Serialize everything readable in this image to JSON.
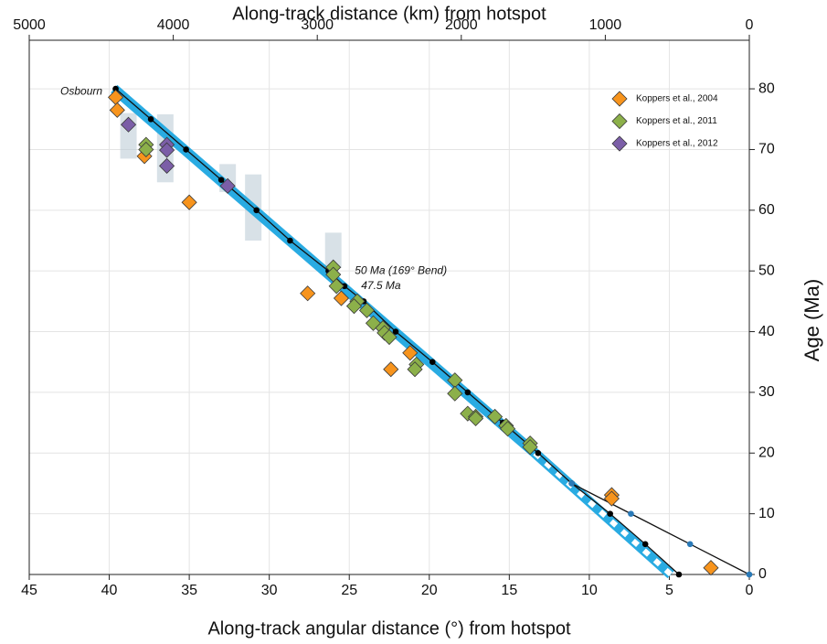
{
  "chart_data": {
    "type": "scatter",
    "xlabel": "Along-track angular distance (°) from hotspot",
    "x2label": "Along-track distance (km) from hotspot",
    "ylabel": "Age (Ma)",
    "xlim": [
      45,
      0
    ],
    "xticks": [
      45,
      40,
      35,
      30,
      25,
      20,
      15,
      10,
      5,
      0
    ],
    "x2lim": [
      5000,
      0
    ],
    "x2ticks": [
      5000,
      4000,
      3000,
      2000,
      1000,
      0
    ],
    "ylim": [
      0,
      88
    ],
    "yticks": [
      0,
      10,
      20,
      30,
      40,
      50,
      60,
      70,
      80
    ],
    "grid": true,
    "legend": "upper right",
    "series": [
      {
        "name": "Koppers et al., 2004",
        "color": "#f7941d",
        "x": [
          39.6,
          39.5,
          37.8,
          35.0,
          27.6,
          25.5,
          21.2,
          22.4,
          8.6,
          8.6,
          2.4
        ],
        "values": [
          78.6,
          76.5,
          68.9,
          61.3,
          46.3,
          45.5,
          36.5,
          33.8,
          13.1,
          12.5,
          1.1
        ]
      },
      {
        "name": "Koppers et al., 2011",
        "color": "#8cb04a",
        "x": [
          37.7,
          37.7,
          26.0,
          26.0,
          25.8,
          24.5,
          24.7,
          23.9,
          23.5,
          22.9,
          22.8,
          22.5,
          20.8,
          20.9,
          18.4,
          18.4,
          17.6,
          17.1,
          17.1,
          15.9,
          15.2,
          15.1,
          13.7,
          13.7
        ],
        "values": [
          70.8,
          70.0,
          50.6,
          49.4,
          47.5,
          45.0,
          44.2,
          43.5,
          41.4,
          40.6,
          39.8,
          39.1,
          34.6,
          33.8,
          32.0,
          29.8,
          26.5,
          26.0,
          25.7,
          26.0,
          24.5,
          24.0,
          21.6,
          21.0
        ]
      },
      {
        "name": "Koppers et al., 2012",
        "color": "#7b5ea7",
        "x": [
          38.8,
          36.4,
          36.4,
          36.4,
          32.6
        ],
        "values": [
          74.1,
          70.8,
          69.9,
          67.3,
          64.0
        ]
      }
    ],
    "age_ranges": [
      {
        "x": 38.8,
        "low": 68.5,
        "high": 76.0
      },
      {
        "x": 36.5,
        "low": 64.6,
        "high": 75.8
      },
      {
        "x": 32.6,
        "low": 63.0,
        "high": 67.6
      },
      {
        "x": 31.0,
        "low": 55.0,
        "high": 65.9
      },
      {
        "x": 26.0,
        "low": 50.5,
        "high": 56.3
      }
    ],
    "band": {
      "color": "#29abe2",
      "x": [
        39.7,
        13.4,
        4.9
      ],
      "values": [
        80,
        20,
        0
      ]
    },
    "model_track": {
      "color": "#000000",
      "x": [
        39.6,
        37.4,
        35.2,
        33.0,
        30.8,
        28.7,
        26.3,
        25.3,
        24.1,
        22.1,
        19.8,
        17.6,
        15.4,
        13.2,
        11.1,
        8.7,
        6.5,
        4.4
      ],
      "values": [
        80,
        75,
        70,
        65,
        60,
        55,
        50,
        47.5,
        45,
        40,
        35,
        30,
        25,
        20,
        15,
        10,
        5,
        0
      ]
    },
    "young_track": {
      "color": "#2a7ab8",
      "x": [
        11.1,
        7.4,
        3.7,
        0
      ],
      "values": [
        15,
        10,
        5,
        0
      ]
    },
    "annotations": [
      {
        "text": "Osbourn",
        "x": 40.2,
        "y": 79.5
      },
      {
        "text": "50 Ma (169° Bend)",
        "x": 25.0,
        "y": 50.0
      },
      {
        "text": "47.5 Ma",
        "x": 24.6,
        "y": 47.5
      }
    ]
  }
}
